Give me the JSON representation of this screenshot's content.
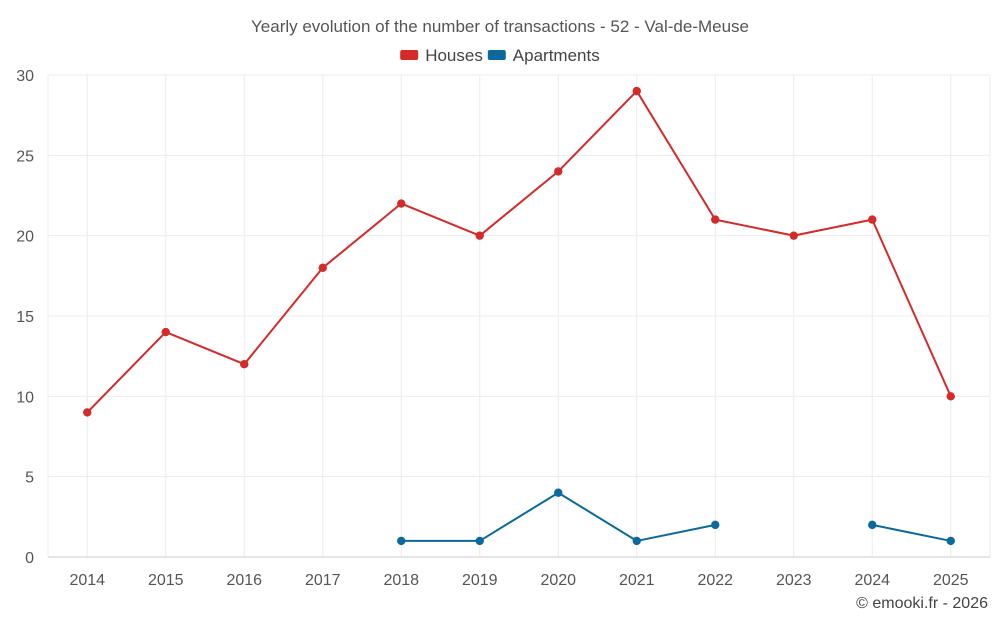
{
  "chart_data": {
    "type": "line",
    "title": "Yearly evolution of the number of transactions - 52 - Val-de-Meuse",
    "categories": [
      "2014",
      "2015",
      "2016",
      "2017",
      "2018",
      "2019",
      "2020",
      "2021",
      "2022",
      "2023",
      "2024",
      "2025"
    ],
    "series": [
      {
        "name": "Houses",
        "color": "#d42a2a",
        "values": [
          9,
          14,
          12,
          18,
          22,
          20,
          24,
          29,
          21,
          20,
          21,
          10
        ]
      },
      {
        "name": "Apartments",
        "color": "#0b6a9b",
        "values": [
          null,
          null,
          null,
          null,
          1,
          1,
          4,
          1,
          2,
          null,
          2,
          1
        ]
      }
    ],
    "ylim": [
      0,
      30
    ],
    "yticks": [
      0,
      5,
      10,
      15,
      20,
      25,
      30
    ],
    "xlabel": "",
    "ylabel": "",
    "grid": true,
    "legend_position": "top-center"
  },
  "credit": "© emooki.fr - 2026"
}
